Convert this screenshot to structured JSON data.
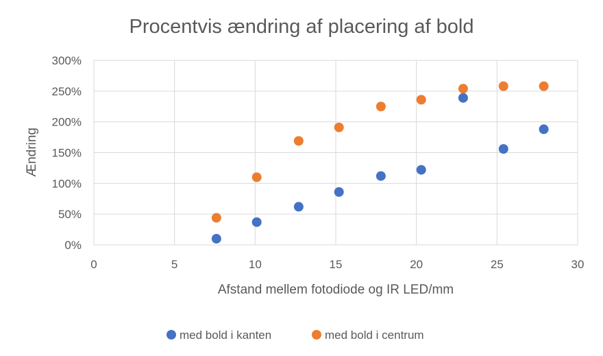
{
  "chart_data": {
    "type": "scatter",
    "title": "Procentvis ændring af placering af bold",
    "xlabel": "Afstand mellem fotodiode og IR LED/mm",
    "ylabel": "Ændring",
    "xlim": [
      0,
      30
    ],
    "ylim": [
      0,
      3
    ],
    "x_ticks": [
      0,
      5,
      10,
      15,
      20,
      25,
      30
    ],
    "x_tick_labels": [
      "0",
      "5",
      "10",
      "15",
      "20",
      "25",
      "30"
    ],
    "y_ticks": [
      0,
      0.5,
      1,
      1.5,
      2,
      2.5,
      3
    ],
    "y_tick_labels": [
      "0%",
      "50%",
      "100%",
      "150%",
      "200%",
      "250%",
      "300%"
    ],
    "grid": true,
    "legend_position": "bottom",
    "series": [
      {
        "name": "med bold i kanten",
        "color": "#4472c4",
        "x": [
          7.6,
          10.1,
          12.7,
          15.2,
          17.8,
          20.3,
          22.9,
          25.4,
          27.9
        ],
        "y": [
          0.1,
          0.37,
          0.62,
          0.86,
          1.12,
          1.22,
          2.39,
          1.56,
          1.88
        ]
      },
      {
        "name": "med bold i centrum",
        "color": "#ed7d31",
        "x": [
          7.6,
          10.1,
          12.7,
          15.2,
          17.8,
          20.3,
          22.9,
          25.4,
          27.9
        ],
        "y": [
          0.44,
          1.1,
          1.69,
          1.91,
          2.25,
          2.36,
          2.54,
          2.58,
          2.58
        ]
      }
    ]
  }
}
